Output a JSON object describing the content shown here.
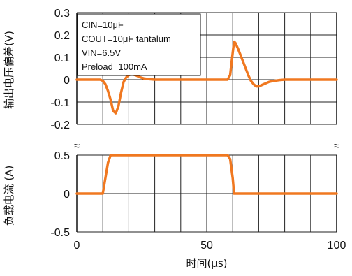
{
  "chart_data": [
    {
      "type": "line",
      "panel": "top",
      "ylabel": "输出电压偏差(V)",
      "y_ticks": [
        "0.3",
        "0.2",
        "0.1",
        "0",
        "-0.1",
        "-0.2"
      ],
      "ylim": [
        -0.2,
        0.3
      ],
      "xlim": [
        0,
        100
      ],
      "grid": true,
      "annotations": [
        "CIN=10μF",
        "COUT=10μF tantalum",
        "VIN=6.5V",
        "Preload=100mA"
      ],
      "series": [
        {
          "color": "#f07820",
          "x": [
            0,
            9,
            10,
            11,
            12,
            13,
            14,
            15,
            16,
            17,
            18,
            19,
            20,
            21,
            22,
            23,
            24,
            26,
            28,
            30,
            32,
            35,
            58,
            59,
            60,
            60.5,
            61,
            62,
            63,
            64,
            65,
            66,
            67,
            68,
            69,
            70,
            71,
            72,
            74,
            76,
            78,
            80,
            100
          ],
          "y": [
            0,
            0,
            -0.005,
            -0.02,
            -0.05,
            -0.09,
            -0.14,
            -0.15,
            -0.12,
            -0.06,
            -0.01,
            0.01,
            0.02,
            0.025,
            0.022,
            0.018,
            0.012,
            0.005,
            0.002,
            0,
            0,
            0,
            0,
            0.02,
            0.12,
            0.17,
            0.165,
            0.14,
            0.11,
            0.08,
            0.05,
            0.02,
            -0.005,
            -0.02,
            -0.03,
            -0.03,
            -0.025,
            -0.02,
            -0.01,
            -0.005,
            -0.002,
            0,
            0
          ]
        }
      ]
    },
    {
      "type": "line",
      "panel": "bottom",
      "ylabel": "负载电流 (A)",
      "y_ticks": [
        "0.5",
        "0",
        "-0.5"
      ],
      "ylim": [
        -0.5,
        0.5
      ],
      "xlim": [
        0,
        100
      ],
      "x_ticks": [
        "0",
        "50",
        "100"
      ],
      "xlabel": "时间(μs)",
      "grid": true,
      "series": [
        {
          "color": "#f07820",
          "x": [
            0,
            10,
            11,
            12,
            13,
            14,
            15,
            58,
            59,
            60,
            60.5,
            100
          ],
          "y": [
            0,
            0,
            0.2,
            0.4,
            0.5,
            0.5,
            0.5,
            0.5,
            0.45,
            0.2,
            0,
            0
          ]
        }
      ]
    }
  ],
  "break_marks": [
    "≈",
    "≈"
  ]
}
